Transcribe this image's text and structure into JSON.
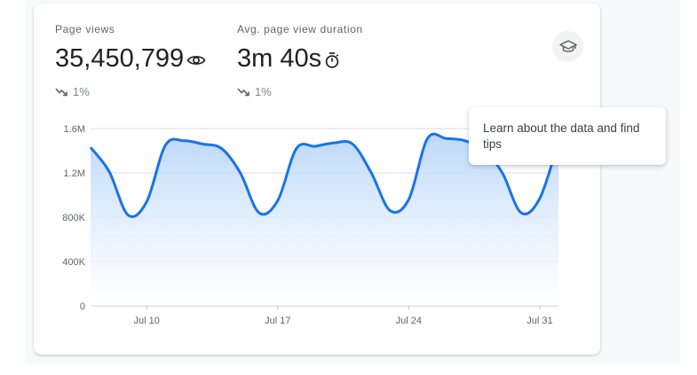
{
  "metrics": [
    {
      "label": "Page views",
      "value": "35,450,799",
      "icon": "eye-icon",
      "change": "1%",
      "trend": "down"
    },
    {
      "label": "Avg. page view duration",
      "value": "3m 40s",
      "icon": "timer-icon",
      "change": "1%",
      "trend": "down"
    }
  ],
  "learn_button": {
    "icon": "graduation-cap-icon"
  },
  "tooltip": {
    "text": "Learn about the data and find tips"
  },
  "colors": {
    "line": "#1a73e8",
    "area_top": "#b9d6f9",
    "grid": "#dadce0",
    "text": "#202124",
    "muted": "#5f6368"
  },
  "chart_data": {
    "type": "area",
    "title": "",
    "xlabel": "",
    "ylabel": "",
    "ylim": [
      0,
      1600000
    ],
    "y_ticks": [
      {
        "value": 0,
        "label": "0"
      },
      {
        "value": 400000,
        "label": "400K"
      },
      {
        "value": 800000,
        "label": "800K"
      },
      {
        "value": 1200000,
        "label": "1.2M"
      },
      {
        "value": 1600000,
        "label": "1.6M"
      }
    ],
    "x_ticks": [
      "Jul 10",
      "Jul 17",
      "Jul 24",
      "Jul 31"
    ],
    "x_tick_index": [
      3,
      10,
      17,
      24
    ],
    "grid": true,
    "series": [
      {
        "x": [
          "Jul 7",
          "Jul 8",
          "Jul 9",
          "Jul 10",
          "Jul 11",
          "Jul 12",
          "Jul 13",
          "Jul 14",
          "Jul 15",
          "Jul 16",
          "Jul 17",
          "Jul 18",
          "Jul 19",
          "Jul 20",
          "Jul 21",
          "Jul 22",
          "Jul 23",
          "Jul 24",
          "Jul 25",
          "Jul 26",
          "Jul 27",
          "Jul 28",
          "Jul 29",
          "Jul 30",
          "Jul 31",
          "Jul 32"
        ],
        "values": [
          1430000,
          1210000,
          820000,
          940000,
          1450000,
          1490000,
          1460000,
          1420000,
          1200000,
          840000,
          950000,
          1420000,
          1440000,
          1470000,
          1460000,
          1200000,
          860000,
          960000,
          1510000,
          1510000,
          1490000,
          1410000,
          1200000,
          840000,
          970000,
          1480000
        ]
      }
    ]
  }
}
